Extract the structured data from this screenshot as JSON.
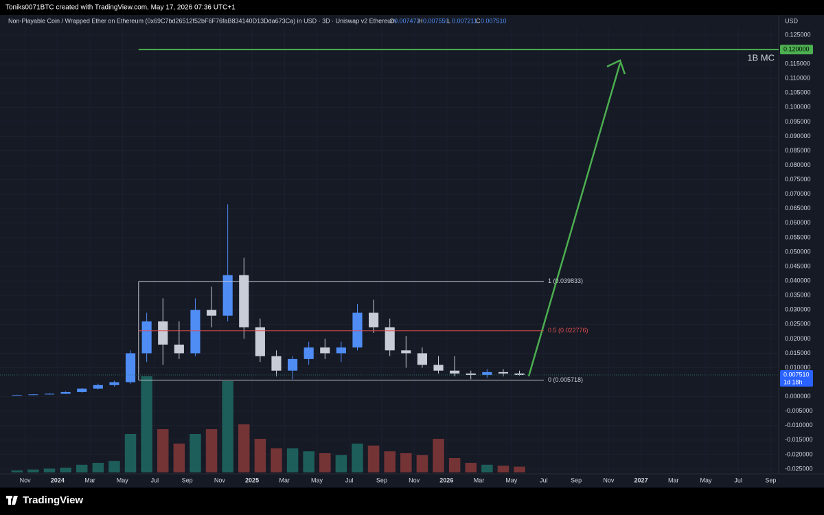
{
  "header": "Toniks0071BTC created with TradingView.com, May 17, 2026 07:36 UTC+1",
  "footer": "TradingView",
  "chart_data": {
    "type": "candlestick",
    "title": "Non-Playable Coin / Wrapped Ether on Ethereum (0x69C7bd26512f52bF6F76faB834140D13Dda673Ca) in USD · 3D · Uniswap v2 Ethereum",
    "legend_ohlc": [
      {
        "key": "O",
        "value": "0.007472"
      },
      {
        "key": "H",
        "value": "0.007550"
      },
      {
        "key": "L",
        "value": "0.007211"
      },
      {
        "key": "C",
        "value": "0.007510"
      }
    ],
    "currency": "USD",
    "x": [
      "2023-10",
      "2023-11",
      "2023-12",
      "2024-01",
      "2024-02",
      "2024-03",
      "2024-04",
      "2024-05",
      "2024-06",
      "2024-07",
      "2024-08",
      "2024-09",
      "2024-10",
      "2024-11",
      "2024-12",
      "2025-01",
      "2025-02",
      "2025-03",
      "2025-04",
      "2025-05",
      "2025-06",
      "2025-07",
      "2025-08",
      "2025-09",
      "2025-10",
      "2025-11",
      "2025-12",
      "2026-01",
      "2026-02",
      "2026-03",
      "2026-04",
      "2026-05"
    ],
    "open": [
      0.0005,
      0.0006,
      0.0008,
      0.001,
      0.0016,
      0.0028,
      0.004,
      0.005,
      0.015,
      0.026,
      0.018,
      0.015,
      0.03,
      0.028,
      0.042,
      0.024,
      0.014,
      0.009,
      0.013,
      0.017,
      0.015,
      0.017,
      0.029,
      0.024,
      0.016,
      0.015,
      0.011,
      0.009,
      0.008,
      0.0075,
      0.0085,
      0.008
    ],
    "high": [
      0.0007,
      0.0009,
      0.0012,
      0.0018,
      0.003,
      0.0045,
      0.0055,
      0.016,
      0.029,
      0.034,
      0.026,
      0.034,
      0.038,
      0.0665,
      0.048,
      0.027,
      0.016,
      0.014,
      0.019,
      0.02,
      0.019,
      0.032,
      0.0335,
      0.027,
      0.021,
      0.017,
      0.014,
      0.014,
      0.009,
      0.0095,
      0.0095,
      0.009
    ],
    "low": [
      0.0004,
      0.0005,
      0.0007,
      0.0009,
      0.0014,
      0.0025,
      0.0035,
      0.0045,
      0.012,
      0.011,
      0.013,
      0.014,
      0.024,
      0.026,
      0.02,
      0.012,
      0.007,
      0.006,
      0.011,
      0.013,
      0.012,
      0.016,
      0.022,
      0.014,
      0.01,
      0.01,
      0.008,
      0.007,
      0.006,
      0.0065,
      0.007,
      0.0072
    ],
    "close": [
      0.0006,
      0.0008,
      0.001,
      0.0016,
      0.0028,
      0.004,
      0.005,
      0.015,
      0.026,
      0.018,
      0.015,
      0.03,
      0.028,
      0.042,
      0.024,
      0.014,
      0.009,
      0.013,
      0.017,
      0.015,
      0.017,
      0.029,
      0.024,
      0.016,
      0.015,
      0.011,
      0.009,
      0.008,
      0.0075,
      0.0085,
      0.008,
      0.0075
    ],
    "volume": [
      2,
      3,
      4,
      5,
      8,
      10,
      12,
      40,
      100,
      45,
      30,
      40,
      45,
      95,
      50,
      35,
      25,
      25,
      22,
      20,
      18,
      30,
      28,
      22,
      20,
      18,
      35,
      15,
      10,
      8,
      7,
      6
    ],
    "volume_ylim": [
      0,
      100
    ],
    "up_color": "#4f8df5",
    "down_color": "#c8ccd6",
    "volume_up_color": "#1f6f68",
    "volume_down_color": "#8c3a3a",
    "xlim": [
      "2023-10",
      "2027-10"
    ],
    "xticks": [
      {
        "value": "2023-11",
        "label": "Nov"
      },
      {
        "value": "2024-01",
        "label": "2024"
      },
      {
        "value": "2024-03",
        "label": "Mar"
      },
      {
        "value": "2024-05",
        "label": "May"
      },
      {
        "value": "2024-07",
        "label": "Jul"
      },
      {
        "value": "2024-09",
        "label": "Sep"
      },
      {
        "value": "2024-11",
        "label": "Nov"
      },
      {
        "value": "2025-01",
        "label": "2025"
      },
      {
        "value": "2025-03",
        "label": "Mar"
      },
      {
        "value": "2025-05",
        "label": "May"
      },
      {
        "value": "2025-07",
        "label": "Jul"
      },
      {
        "value": "2025-09",
        "label": "Sep"
      },
      {
        "value": "2025-11",
        "label": "Nov"
      },
      {
        "value": "2026-01",
        "label": "2026"
      },
      {
        "value": "2026-03",
        "label": "Mar"
      },
      {
        "value": "2026-05",
        "label": "May"
      },
      {
        "value": "2026-07",
        "label": "Jul"
      },
      {
        "value": "2026-09",
        "label": "Sep"
      },
      {
        "value": "2026-11",
        "label": "Nov"
      },
      {
        "value": "2027-01",
        "label": "2027"
      },
      {
        "value": "2027-03",
        "label": "Mar"
      },
      {
        "value": "2027-05",
        "label": "May"
      },
      {
        "value": "2027-07",
        "label": "Jul"
      },
      {
        "value": "2027-09",
        "label": "Sep"
      }
    ],
    "ylim": [
      -0.025,
      0.125
    ],
    "yticks": [
      {
        "value": 0.125,
        "label": "0.125000"
      },
      {
        "value": 0.12,
        "label": "0.120000"
      },
      {
        "value": 0.115,
        "label": "0.115000"
      },
      {
        "value": 0.11,
        "label": "0.110000"
      },
      {
        "value": 0.105,
        "label": "0.105000"
      },
      {
        "value": 0.1,
        "label": "0.100000"
      },
      {
        "value": 0.095,
        "label": "0.095000"
      },
      {
        "value": 0.09,
        "label": "0.090000"
      },
      {
        "value": 0.085,
        "label": "0.085000"
      },
      {
        "value": 0.08,
        "label": "0.080000"
      },
      {
        "value": 0.075,
        "label": "0.075000"
      },
      {
        "value": 0.07,
        "label": "0.070000"
      },
      {
        "value": 0.065,
        "label": "0.065000"
      },
      {
        "value": 0.06,
        "label": "0.060000"
      },
      {
        "value": 0.055,
        "label": "0.055000"
      },
      {
        "value": 0.05,
        "label": "0.050000"
      },
      {
        "value": 0.045,
        "label": "0.045000"
      },
      {
        "value": 0.04,
        "label": "0.040000"
      },
      {
        "value": 0.035,
        "label": "0.035000"
      },
      {
        "value": 0.03,
        "label": "0.030000"
      },
      {
        "value": 0.025,
        "label": "0.025000"
      },
      {
        "value": 0.02,
        "label": "0.020000"
      },
      {
        "value": 0.015,
        "label": "0.015000"
      },
      {
        "value": 0.01,
        "label": "0.010000"
      },
      {
        "value": 0,
        "label": "0.000000"
      },
      {
        "value": -0.005,
        "label": "-0.005000"
      },
      {
        "value": -0.01,
        "label": "-0.010000"
      },
      {
        "value": -0.015,
        "label": "-0.015000"
      },
      {
        "value": -0.02,
        "label": "-0.020000"
      },
      {
        "value": -0.025,
        "label": "-0.025000"
      }
    ],
    "fib": {
      "start": "2024-06",
      "end": "2026-07",
      "levels": [
        {
          "value": 0.039833,
          "label": "1 (0.039833)",
          "color": "#c8ccd6"
        },
        {
          "value": 0.022776,
          "label": "0.5 (0.022776)",
          "color": "#e04f4f"
        },
        {
          "value": 0.005718,
          "label": "0 (0.005718)",
          "color": "#c8ccd6"
        }
      ]
    },
    "target": {
      "value": 0.12,
      "label": "0.120000",
      "start": "2024-06",
      "note": "1B MC",
      "color": "#4caf50"
    },
    "last_price": {
      "value": 0.00751,
      "label": "0.007510",
      "countdown": "1d 18h",
      "color": "#2962ff"
    }
  }
}
